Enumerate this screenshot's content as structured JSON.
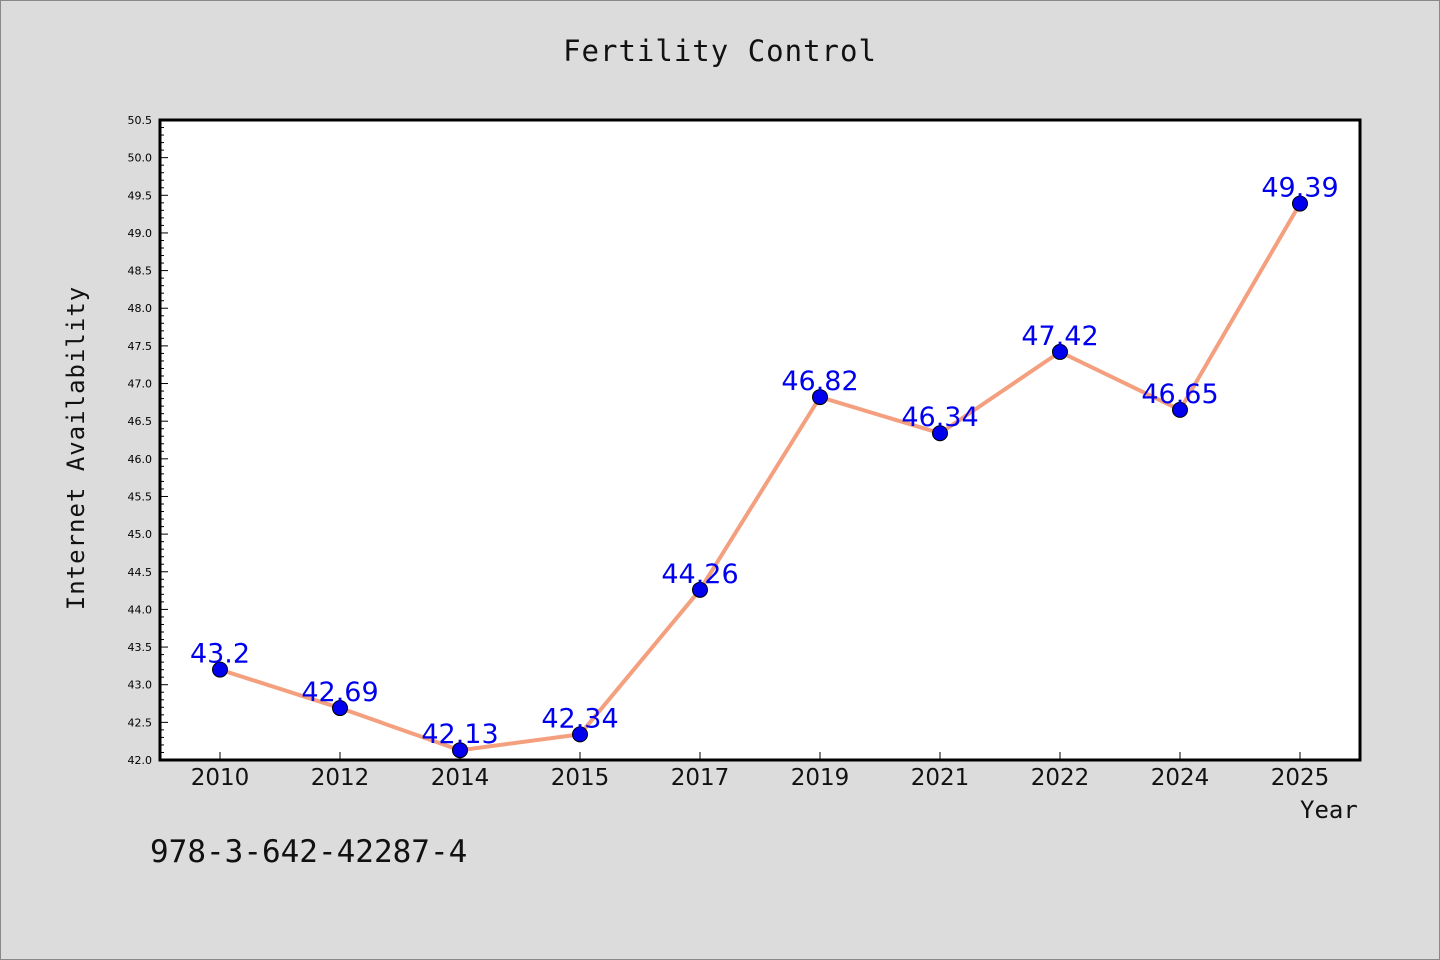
{
  "chart_data": {
    "type": "line",
    "title": "Fertility Control",
    "xlabel": "Year",
    "ylabel": "Internet Availability",
    "categories": [
      "2010",
      "2012",
      "2014",
      "2015",
      "2017",
      "2019",
      "2021",
      "2022",
      "2024",
      "2025"
    ],
    "series": [
      {
        "values": [
          43.2,
          42.69,
          42.13,
          42.34,
          44.26,
          46.82,
          46.34,
          47.42,
          46.65,
          49.39
        ]
      }
    ],
    "data_labels": [
      "43.2",
      "42.69",
      "42.13",
      "42.34",
      "44.26",
      "46.82",
      "46.34",
      "47.42",
      "46.65",
      "49.39"
    ],
    "ylim": [
      42.0,
      50.5
    ],
    "yticks": [
      "42.0",
      "42.5",
      "43.0",
      "43.5",
      "44.0",
      "44.5",
      "45.0",
      "45.5",
      "46.0",
      "46.5",
      "47.0",
      "47.5",
      "48.0",
      "48.5",
      "49.0",
      "49.5",
      "50.0",
      "50.5"
    ],
    "grid": false,
    "line_color": "#f4a07f",
    "marker_color": "#0000ee",
    "label_color": "#0000ee"
  },
  "annotation": "978-3-642-42287-4"
}
